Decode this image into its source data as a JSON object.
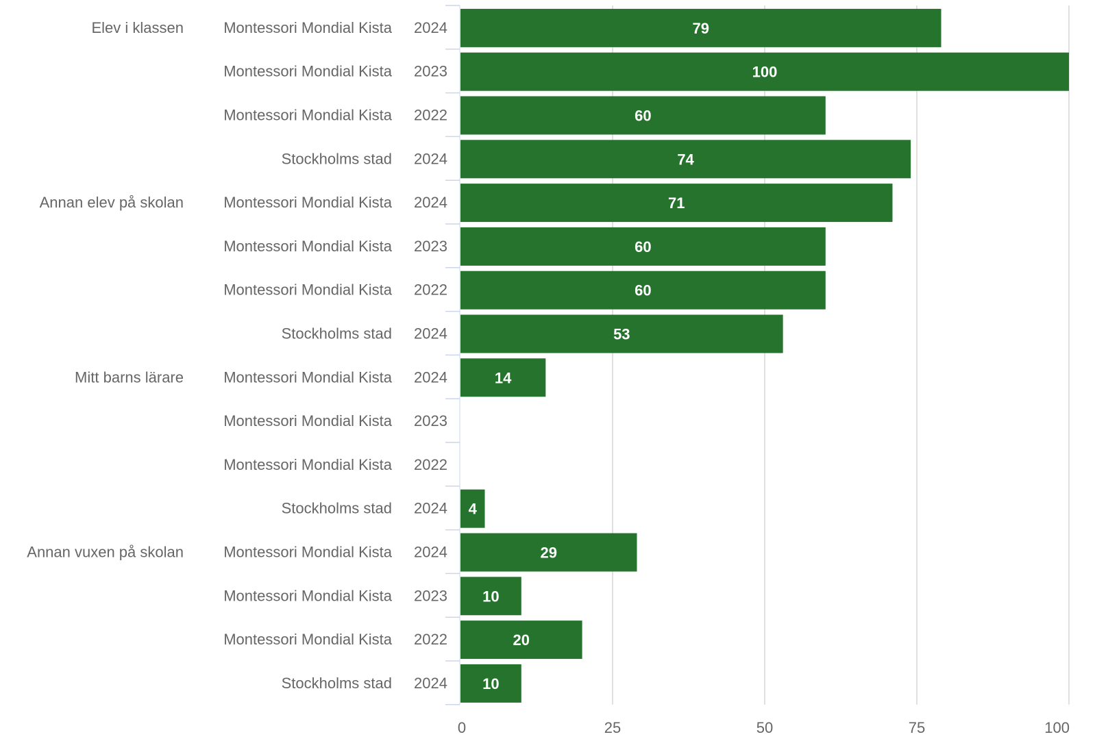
{
  "chart_data": {
    "type": "bar",
    "orientation": "horizontal",
    "title": "",
    "xlabel": "",
    "ylabel": "",
    "xlim": [
      0,
      100
    ],
    "xticks": [
      0,
      25,
      50,
      75,
      100
    ],
    "grid": true,
    "colors": {
      "bar": "#26732e",
      "grid": "#e0e0e0",
      "axis": "#ccd6eb",
      "text": "#666666",
      "label": "#ffffff"
    },
    "groups": [
      {
        "name": "Elev i klassen",
        "rows": [
          {
            "unit": "Montessori Mondial Kista",
            "year": "2024",
            "value": 79,
            "label": "79"
          },
          {
            "unit": "Montessori Mondial Kista",
            "year": "2023",
            "value": 100,
            "label": "100"
          },
          {
            "unit": "Montessori Mondial Kista",
            "year": "2022",
            "value": 60,
            "label": "60"
          },
          {
            "unit": "Stockholms stad",
            "year": "2024",
            "value": 74,
            "label": "74"
          }
        ]
      },
      {
        "name": "Annan elev på skolan",
        "rows": [
          {
            "unit": "Montessori Mondial Kista",
            "year": "2024",
            "value": 71,
            "label": "71"
          },
          {
            "unit": "Montessori Mondial Kista",
            "year": "2023",
            "value": 60,
            "label": "60"
          },
          {
            "unit": "Montessori Mondial Kista",
            "year": "2022",
            "value": 60,
            "label": "60"
          },
          {
            "unit": "Stockholms stad",
            "year": "2024",
            "value": 53,
            "label": "53"
          }
        ]
      },
      {
        "name": "Mitt barns lärare",
        "rows": [
          {
            "unit": "Montessori Mondial Kista",
            "year": "2024",
            "value": 14,
            "label": "14"
          },
          {
            "unit": "Montessori Mondial Kista",
            "year": "2023",
            "value": null,
            "label": ""
          },
          {
            "unit": "Montessori Mondial Kista",
            "year": "2022",
            "value": null,
            "label": ""
          },
          {
            "unit": "Stockholms stad",
            "year": "2024",
            "value": 4,
            "label": "4"
          }
        ]
      },
      {
        "name": "Annan vuxen på skolan",
        "rows": [
          {
            "unit": "Montessori Mondial Kista",
            "year": "2024",
            "value": 29,
            "label": "29"
          },
          {
            "unit": "Montessori Mondial Kista",
            "year": "2023",
            "value": 10,
            "label": "10"
          },
          {
            "unit": "Montessori Mondial Kista",
            "year": "2022",
            "value": 20,
            "label": "20"
          },
          {
            "unit": "Stockholms stad",
            "year": "2024",
            "value": 10,
            "label": "10"
          }
        ]
      }
    ]
  }
}
